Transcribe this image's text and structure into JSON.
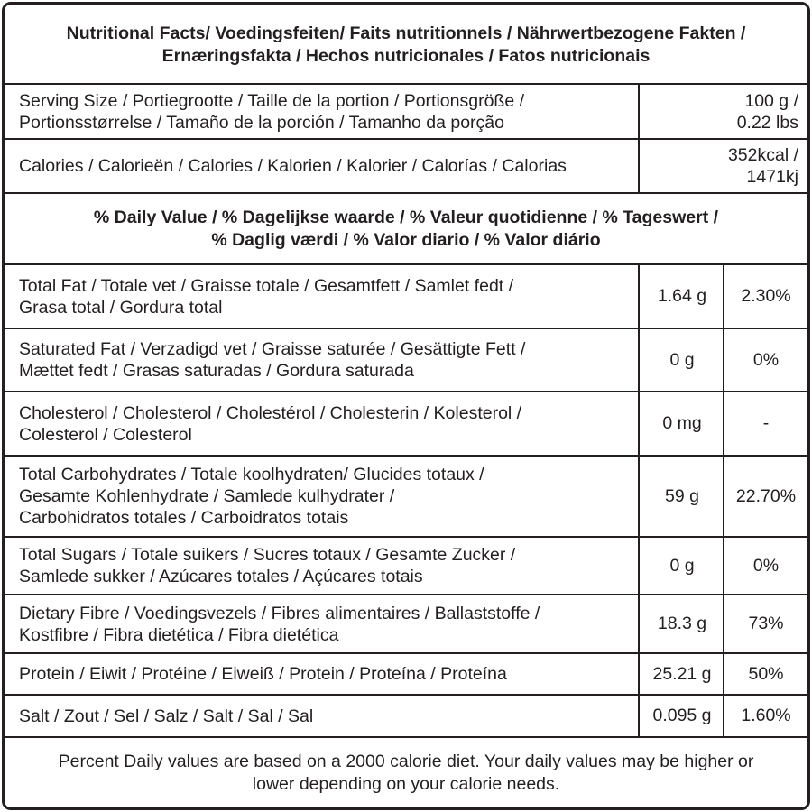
{
  "title": {
    "line1": "Nutritional Facts/ Voedingsfeiten/ Faits nutritionnels / Nährwertbezogene Fakten /",
    "line2": "Ernæringsfakta / Hechos nutricionales / Fatos nutricionais"
  },
  "serving": {
    "label_line1": "Serving Size / Portiegrootte / Taille de la portion / Portionsgröße /",
    "label_line2": "Portionsstørrelse / Tamaño de la porción / Tamanho da porção",
    "value_line1": "100 g /",
    "value_line2": "0.22 lbs"
  },
  "calories": {
    "label": "Calories / Calorieën / Calories / Kalorien / Kalorier / Calorías / Calorias",
    "value_line1": "352kcal /",
    "value_line2": "1471kj"
  },
  "daily_value_header": {
    "line1": "% Daily Value / % Dagelijkse waarde / % Valeur quotidienne / % Tageswert /",
    "line2": "% Daglig værdi / % Valor diario / % Valor diário"
  },
  "nutrients": [
    {
      "lines": [
        "Total Fat / Totale vet / Graisse totale / Gesamtfett / Samlet fedt /",
        "Grasa total / Gordura total"
      ],
      "amount": "1.64 g",
      "dv": "2.30%"
    },
    {
      "lines": [
        "Saturated Fat / Verzadigd vet / Graisse saturée / Gesättigte Fett /",
        "Mættet fedt / Grasas saturadas / Gordura saturada"
      ],
      "amount": "0 g",
      "dv": "0%"
    },
    {
      "lines": [
        "Cholesterol / Cholesterol  / Cholestérol / Cholesterin /  Kolesterol /",
        "Colesterol / Colesterol"
      ],
      "amount": "0 mg",
      "dv": "-"
    },
    {
      "lines": [
        "Total Carbohydrates / Totale koolhydraten/ Glucides totaux /",
        "Gesamte Kohlenhydrate / Samlede kulhydrater /",
        "Carbohidratos totales / Carboidratos totais"
      ],
      "amount": "59 g",
      "dv": "22.70%"
    },
    {
      "lines": [
        "Total Sugars / Totale suikers / Sucres totaux / Gesamte Zucker /",
        "Samlede sukker / Azúcares totales / Açúcares totais"
      ],
      "amount": "0 g",
      "dv": "0%"
    },
    {
      "lines": [
        "Dietary Fibre / Voedingsvezels / Fibres alimentaires / Ballaststoffe /",
        "Kostfibre / Fibra dietética / Fibra dietética"
      ],
      "amount": "18.3 g",
      "dv": "73%"
    },
    {
      "lines": [
        "Protein / Eiwit / Protéine / Eiweiß / Protein / Proteína / Proteína"
      ],
      "amount": "25.21 g",
      "dv": "50%"
    },
    {
      "lines": [
        "Salt / Zout / Sel / Salz / Salt / Sal / Sal"
      ],
      "amount": "0.095 g",
      "dv": "1.60%"
    }
  ],
  "footer": {
    "line1": "Percent Daily values are based on a 2000 calorie diet. Your daily values may be higher or",
    "line2": "lower depending on your calorie needs."
  }
}
